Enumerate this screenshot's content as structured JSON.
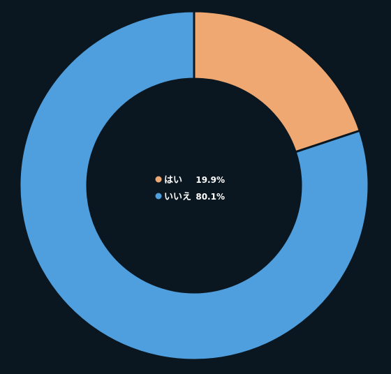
{
  "chart_data": {
    "type": "pie",
    "style": "donut",
    "series": [
      {
        "name": "はい",
        "value": 19.9,
        "label": "19.9%",
        "color": "#f0a873"
      },
      {
        "name": "いいえ",
        "value": 80.1,
        "label": "80.1%",
        "color": "#4f9edd"
      }
    ],
    "legend_placement": "center"
  },
  "colors": {
    "background": "#0a1720",
    "separator": "#0a1720"
  }
}
